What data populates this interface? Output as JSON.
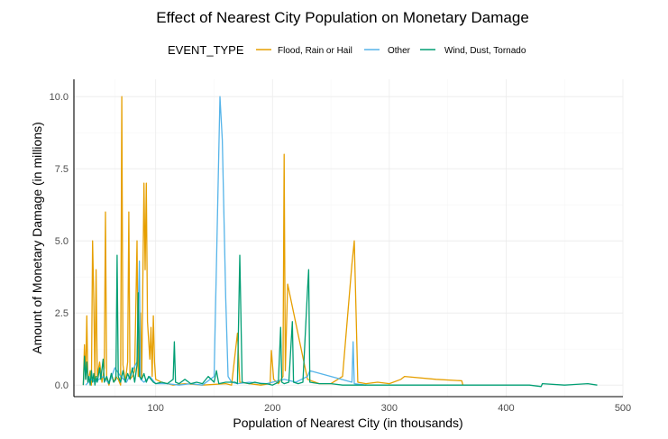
{
  "chart_data": {
    "type": "line",
    "title": "Effect of Nearest City Population on Monetary Damage",
    "xlabel": "Population of Nearest City (in thousands)",
    "ylabel": "Amount of Monetary Damage (in millions)",
    "xlim": [
      30,
      500
    ],
    "ylim": [
      -0.4,
      10.6
    ],
    "xticks": [
      100,
      200,
      300,
      400,
      500
    ],
    "xtick_labels": [
      "100",
      "200",
      "300",
      "400",
      "500"
    ],
    "yticks": [
      0,
      2.5,
      5,
      7.5,
      10
    ],
    "ytick_labels": [
      "0.0",
      "2.5",
      "5.0",
      "7.5",
      "10.0"
    ],
    "grid": true,
    "legend": {
      "title": "EVENT_TYPE",
      "position": "top"
    },
    "series": [
      {
        "name": "Flood, Rain or Hail",
        "color": "#E69F00",
        "points": [
          [
            38,
            0
          ],
          [
            39,
            1.4
          ],
          [
            40,
            0.2
          ],
          [
            41,
            2.4
          ],
          [
            42,
            0.1
          ],
          [
            44,
            0.5
          ],
          [
            45,
            0
          ],
          [
            46,
            5.0
          ],
          [
            47,
            3.0
          ],
          [
            48,
            0.2
          ],
          [
            49,
            4.0
          ],
          [
            50,
            0.3
          ],
          [
            52,
            0.8
          ],
          [
            54,
            0.1
          ],
          [
            56,
            0.6
          ],
          [
            57,
            6.0
          ],
          [
            58,
            0.2
          ],
          [
            60,
            0
          ],
          [
            62,
            0.4
          ],
          [
            64,
            0.1
          ],
          [
            66,
            0.3
          ],
          [
            68,
            0.2
          ],
          [
            70,
            0
          ],
          [
            71,
            10.0
          ],
          [
            72,
            0.7
          ],
          [
            74,
            0.1
          ],
          [
            76,
            0.8
          ],
          [
            77,
            6.0
          ],
          [
            78,
            0.2
          ],
          [
            80,
            0.3
          ],
          [
            82,
            0.5
          ],
          [
            84,
            5.0
          ],
          [
            85,
            0.3
          ],
          [
            87,
            2.5
          ],
          [
            88,
            0.2
          ],
          [
            90,
            7.0
          ],
          [
            91,
            4.0
          ],
          [
            92,
            7.0
          ],
          [
            93,
            2.2
          ],
          [
            95,
            0.9
          ],
          [
            96,
            2.0
          ],
          [
            97,
            0.3
          ],
          [
            98,
            2.4
          ],
          [
            99,
            0.8
          ],
          [
            100,
            0.2
          ],
          [
            105,
            0.1
          ],
          [
            110,
            0.05
          ],
          [
            115,
            0
          ],
          [
            125,
            0.05
          ],
          [
            140,
            0
          ],
          [
            160,
            0.05
          ],
          [
            165,
            0
          ],
          [
            170,
            1.8
          ],
          [
            172,
            0.1
          ],
          [
            180,
            0.05
          ],
          [
            190,
            0
          ],
          [
            198,
            0.05
          ],
          [
            199,
            1.2
          ],
          [
            201,
            0.2
          ],
          [
            205,
            0.05
          ],
          [
            209,
            0.3
          ],
          [
            210,
            8.0
          ],
          [
            211,
            0.5
          ],
          [
            213,
            3.5
          ],
          [
            230,
            0.2
          ],
          [
            240,
            0.05
          ],
          [
            250,
            0.05
          ],
          [
            260,
            0.3
          ],
          [
            268,
            4.2
          ],
          [
            270,
            5.0
          ],
          [
            273,
            0.1
          ],
          [
            280,
            0.05
          ],
          [
            290,
            0.1
          ],
          [
            300,
            0.05
          ],
          [
            310,
            0.2
          ],
          [
            313,
            0.3
          ],
          [
            340,
            0.2
          ],
          [
            362,
            0.15
          ],
          [
            363,
            0
          ]
        ]
      },
      {
        "name": "Other",
        "color": "#56B4E9",
        "points": [
          [
            40,
            0
          ],
          [
            45,
            0.2
          ],
          [
            48,
            0.1
          ],
          [
            55,
            0.3
          ],
          [
            60,
            0.05
          ],
          [
            65,
            0.6
          ],
          [
            70,
            0.3
          ],
          [
            75,
            0.1
          ],
          [
            80,
            0.5
          ],
          [
            84,
            0.8
          ],
          [
            86,
            4.3
          ],
          [
            87,
            0.2
          ],
          [
            90,
            0.1
          ],
          [
            95,
            0.3
          ],
          [
            100,
            0.05
          ],
          [
            110,
            0.05
          ],
          [
            120,
            0
          ],
          [
            130,
            0.05
          ],
          [
            140,
            0
          ],
          [
            150,
            0.3
          ],
          [
            155,
            10.0
          ],
          [
            157,
            8.5
          ],
          [
            160,
            3.0
          ],
          [
            162,
            0.3
          ],
          [
            165,
            0.1
          ],
          [
            170,
            0.05
          ],
          [
            180,
            0.1
          ],
          [
            195,
            0.05
          ],
          [
            210,
            0.2
          ],
          [
            220,
            0.1
          ],
          [
            230,
            0.3
          ],
          [
            232,
            0.5
          ],
          [
            268,
            0.1
          ],
          [
            269,
            1.5
          ],
          [
            270,
            0.05
          ],
          [
            280,
            0
          ]
        ]
      },
      {
        "name": "Wind, Dust, Tornado",
        "color": "#009E73",
        "points": [
          [
            38,
            0
          ],
          [
            39,
            1.0
          ],
          [
            40,
            0.2
          ],
          [
            41,
            0.8
          ],
          [
            42,
            0.1
          ],
          [
            43,
            0.3
          ],
          [
            44,
            0
          ],
          [
            45,
            0.5
          ],
          [
            46,
            0.1
          ],
          [
            47,
            0.4
          ],
          [
            48,
            0
          ],
          [
            49,
            0.3
          ],
          [
            50,
            0.1
          ],
          [
            52,
            0.6
          ],
          [
            53,
            0.2
          ],
          [
            55,
            0.9
          ],
          [
            56,
            0.1
          ],
          [
            58,
            0.3
          ],
          [
            60,
            0.05
          ],
          [
            62,
            0.4
          ],
          [
            64,
            0.1
          ],
          [
            66,
            0.2
          ],
          [
            67,
            4.5
          ],
          [
            68,
            0.3
          ],
          [
            70,
            0.1
          ],
          [
            72,
            0.5
          ],
          [
            74,
            0.1
          ],
          [
            76,
            0.4
          ],
          [
            78,
            0.2
          ],
          [
            80,
            0.6
          ],
          [
            82,
            0.1
          ],
          [
            84,
            0.7
          ],
          [
            85,
            3.2
          ],
          [
            86,
            0.3
          ],
          [
            88,
            0.2
          ],
          [
            90,
            0.4
          ],
          [
            92,
            0.1
          ],
          [
            94,
            0.3
          ],
          [
            96,
            0.2
          ],
          [
            98,
            0.1
          ],
          [
            100,
            0.05
          ],
          [
            105,
            0.1
          ],
          [
            110,
            0.05
          ],
          [
            115,
            0.2
          ],
          [
            116,
            1.5
          ],
          [
            117,
            0.1
          ],
          [
            120,
            0.05
          ],
          [
            125,
            0.2
          ],
          [
            130,
            0.05
          ],
          [
            135,
            0.1
          ],
          [
            140,
            0.05
          ],
          [
            145,
            0.3
          ],
          [
            150,
            0.1
          ],
          [
            152,
            0.5
          ],
          [
            154,
            0.05
          ],
          [
            160,
            0.1
          ],
          [
            168,
            0.1
          ],
          [
            170,
            0.05
          ],
          [
            172,
            4.5
          ],
          [
            174,
            0.1
          ],
          [
            180,
            0.05
          ],
          [
            185,
            0.1
          ],
          [
            190,
            0.05
          ],
          [
            195,
            0.05
          ],
          [
            200,
            0
          ],
          [
            205,
            0.1
          ],
          [
            207,
            2.0
          ],
          [
            208,
            0.1
          ],
          [
            210,
            0.05
          ],
          [
            214,
            0.1
          ],
          [
            217,
            2.2
          ],
          [
            218,
            0.1
          ],
          [
            222,
            0.05
          ],
          [
            226,
            0.1
          ],
          [
            230,
            3.3
          ],
          [
            231,
            4.0
          ],
          [
            232,
            0.1
          ],
          [
            240,
            0.05
          ],
          [
            250,
            0.05
          ],
          [
            260,
            0
          ],
          [
            280,
            0
          ],
          [
            300,
            0
          ],
          [
            330,
            0
          ],
          [
            360,
            0
          ],
          [
            390,
            0
          ],
          [
            420,
            0
          ],
          [
            430,
            -0.05
          ],
          [
            431,
            0.05
          ],
          [
            450,
            0
          ],
          [
            470,
            0.05
          ],
          [
            478,
            0
          ]
        ]
      }
    ]
  }
}
